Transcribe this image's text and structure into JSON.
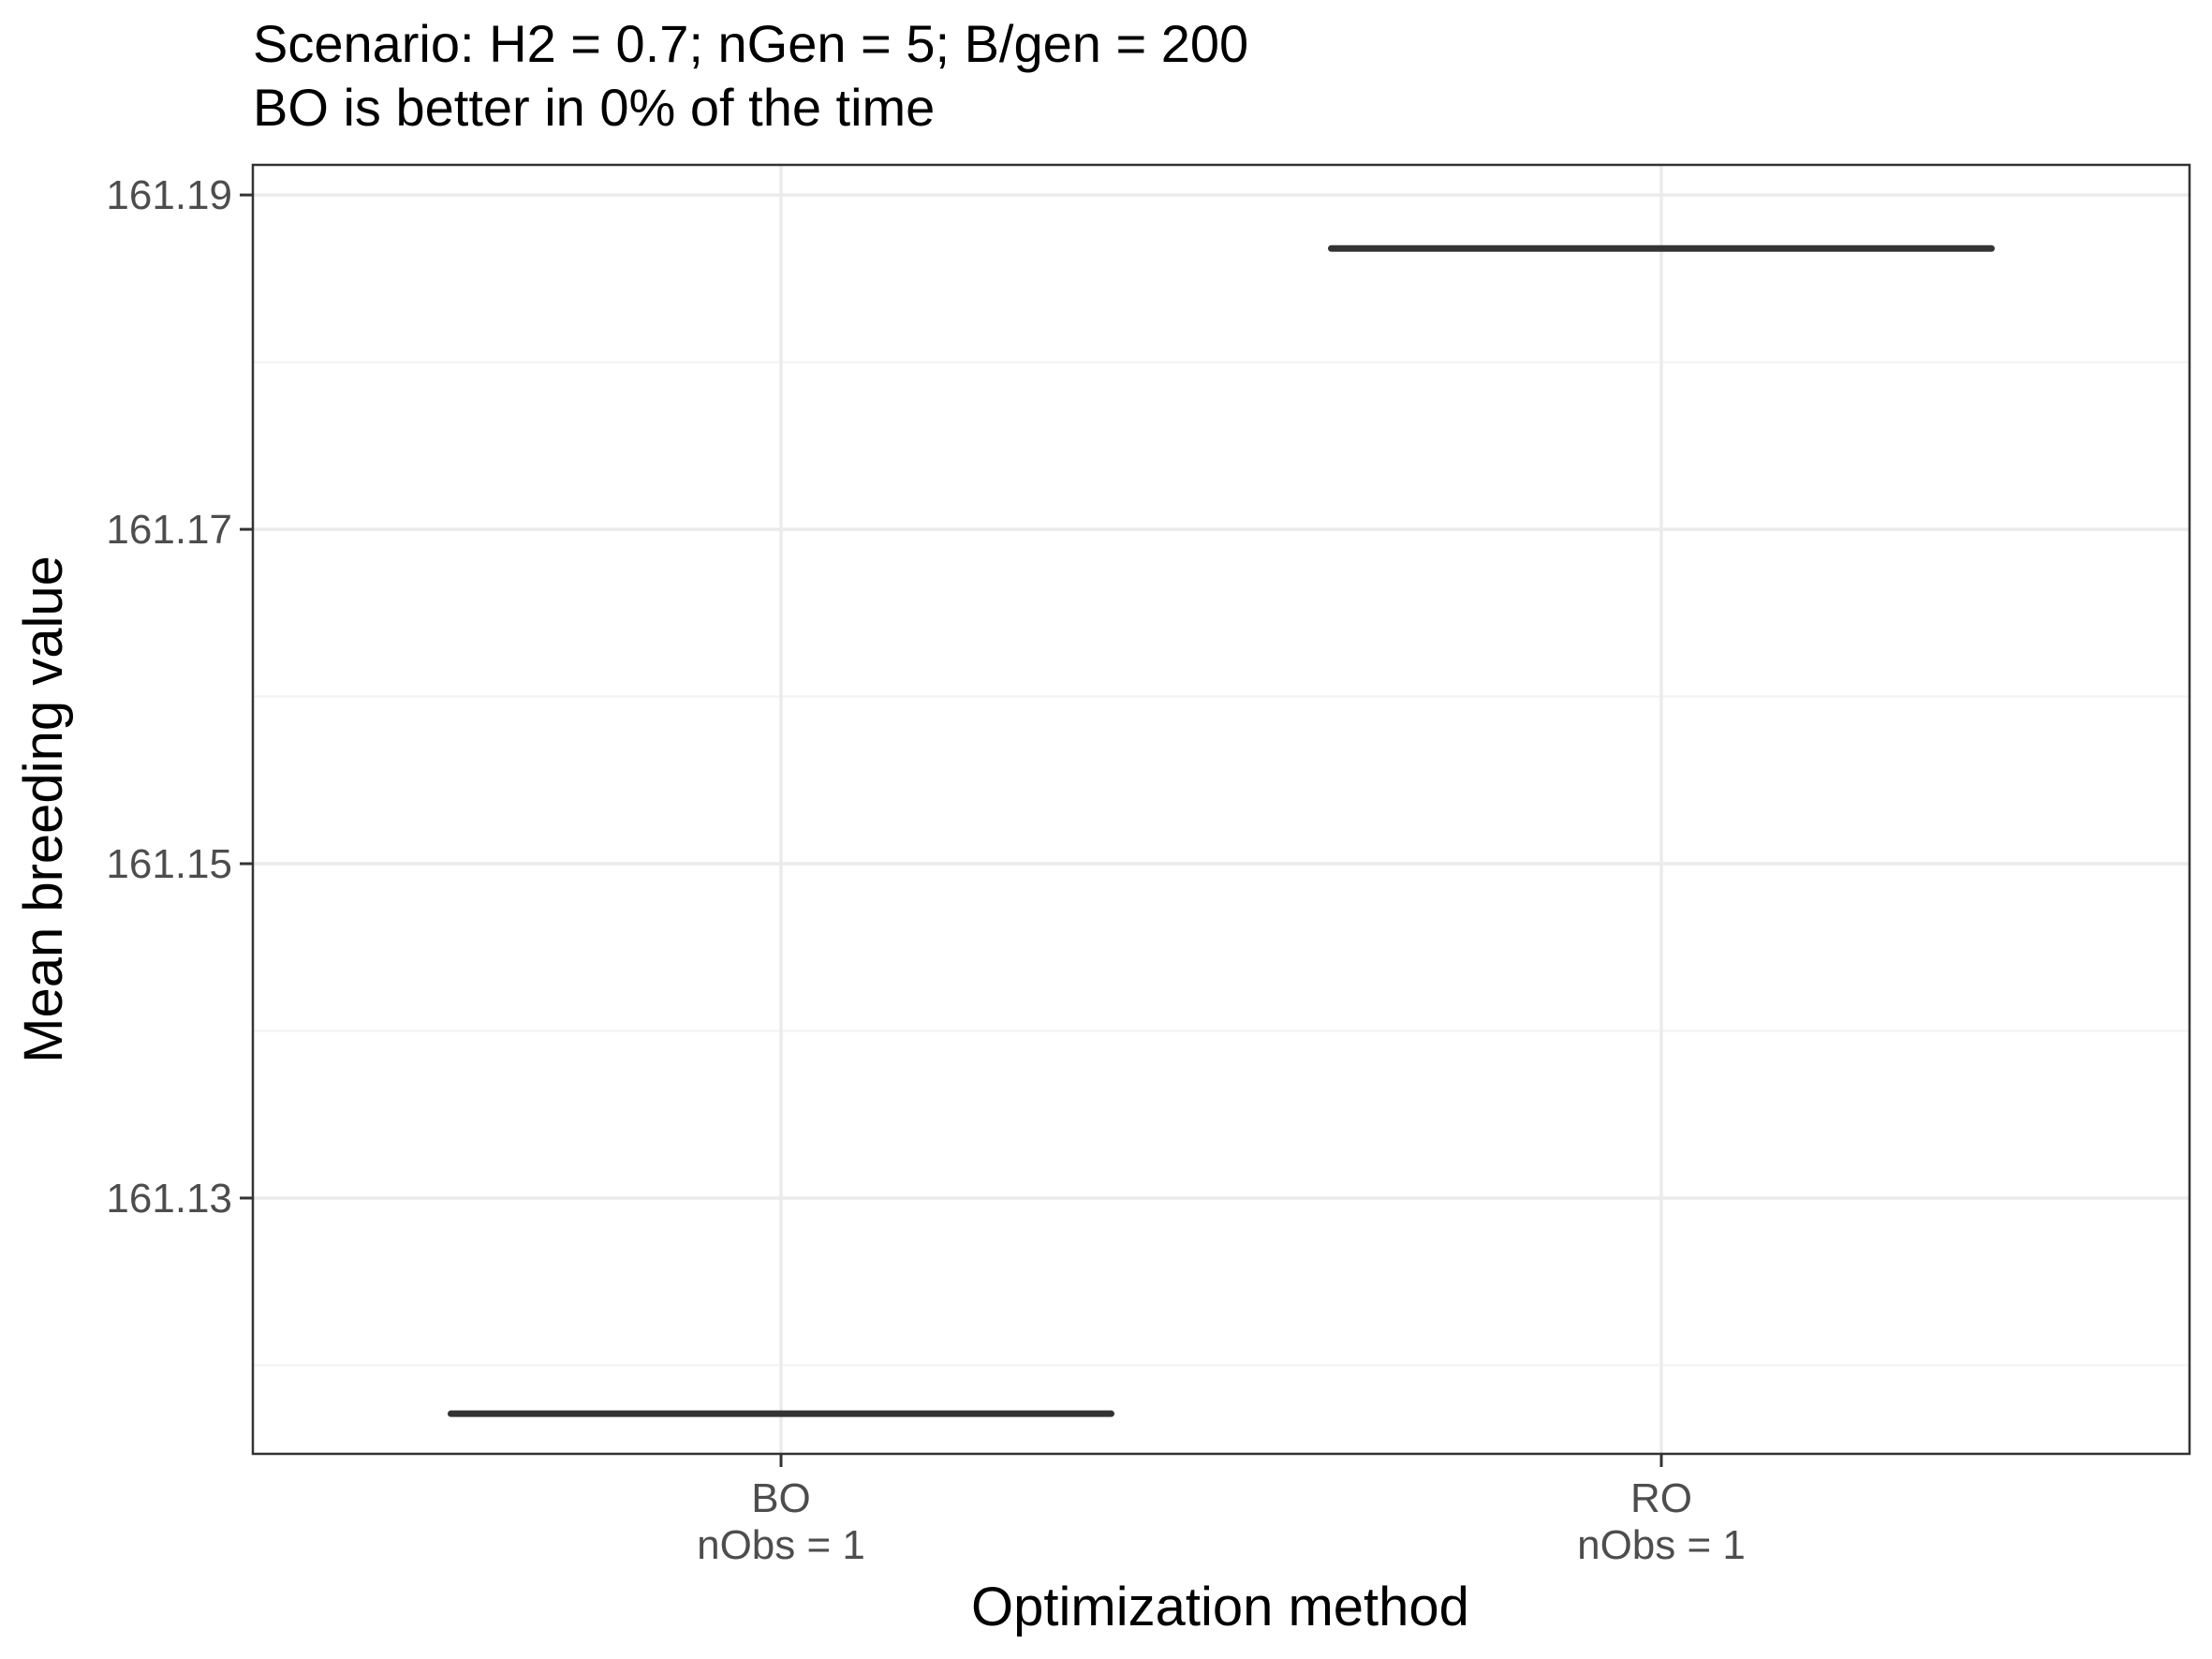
{
  "chart_data": {
    "type": "box",
    "title": "Scenario: H2 = 0.7; nGen = 5; B/gen = 200",
    "subtitle": "BO is better in 0% of the time",
    "xlabel": "Optimization method",
    "ylabel": "Mean breeding value",
    "categories": [
      "BO",
      "RO"
    ],
    "category_sublabels": [
      "nObs = 1",
      "nObs = 1"
    ],
    "values": [
      161.1171,
      161.1868
    ],
    "ylim": [
      161.1147,
      161.1918
    ],
    "yticks": [
      161.13,
      161.15,
      161.17,
      161.19
    ],
    "ytick_labels": [
      "161.13",
      "161.15",
      "161.17",
      "161.19"
    ],
    "grid": true,
    "legend": "none"
  }
}
